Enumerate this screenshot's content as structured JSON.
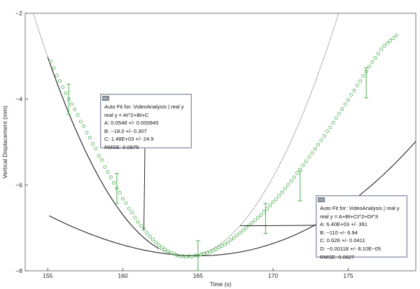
{
  "chart_data": {
    "type": "scatter",
    "xlabel": "Time (s)",
    "ylabel": "Vertical Displacement (mm)",
    "xlim": [
      153.5,
      179.5
    ],
    "ylim": [
      -8,
      -2
    ],
    "xticks": [
      155,
      160,
      165,
      170,
      175
    ],
    "yticks": [
      -2,
      -4,
      -6,
      -8
    ],
    "grid": false,
    "colors": {
      "points": "#4caf50",
      "errorbars": "#4caf50",
      "fit": "#222222",
      "extrapolation": "#444444"
    },
    "series": [
      {
        "kind": "data",
        "x": [
          155.2,
          155.4,
          155.6,
          155.8,
          156.0,
          156.2,
          156.4,
          156.6,
          156.8,
          157.0,
          157.2,
          157.4,
          157.6,
          157.8,
          158.0,
          158.2,
          158.4,
          158.6,
          158.8,
          159.0,
          159.2,
          159.4,
          159.6,
          159.8,
          160.0,
          160.2,
          160.4,
          160.6,
          160.8,
          161.0,
          161.2,
          161.4,
          161.6,
          161.8,
          162.0,
          162.2,
          162.4,
          162.6,
          162.8,
          163.0,
          163.2,
          163.4,
          163.6,
          163.8,
          164.0,
          164.2,
          164.4,
          164.6,
          164.8,
          165.0,
          165.2,
          165.4,
          165.6,
          165.8,
          166.0,
          166.2,
          166.4,
          166.6,
          166.8,
          167.0,
          167.2,
          167.4,
          167.6,
          167.8,
          168.0,
          168.2,
          168.4,
          168.6,
          168.8,
          169.0,
          169.2,
          169.4,
          169.6,
          169.8,
          170.0,
          170.2,
          170.4,
          170.6,
          170.8,
          171.0,
          171.2,
          171.4,
          171.6,
          171.8,
          172.0,
          172.2,
          172.4,
          172.6,
          172.8,
          173.0,
          173.2,
          173.4,
          173.6,
          173.8,
          174.0,
          174.2,
          174.4,
          174.6,
          174.8,
          175.0,
          175.2,
          175.4,
          175.6,
          175.8,
          176.0,
          176.2,
          176.4,
          176.6,
          176.8,
          177.0,
          177.2,
          177.4,
          177.6,
          177.8,
          178.0,
          178.2
        ],
        "y": [
          -3.12,
          -3.28,
          -3.45,
          -3.58,
          -3.72,
          -3.86,
          -4.0,
          -4.12,
          -4.24,
          -4.37,
          -4.52,
          -4.63,
          -4.78,
          -4.9,
          -5.04,
          -5.15,
          -5.32,
          -5.42,
          -5.58,
          -5.7,
          -5.82,
          -5.95,
          -6.08,
          -6.18,
          -6.32,
          -6.42,
          -6.55,
          -6.64,
          -6.76,
          -6.86,
          -6.95,
          -7.03,
          -7.12,
          -7.2,
          -7.27,
          -7.34,
          -7.4,
          -7.46,
          -7.5,
          -7.55,
          -7.58,
          -7.6,
          -7.64,
          -7.66,
          -7.66,
          -7.68,
          -7.66,
          -7.67,
          -7.64,
          -7.65,
          -7.62,
          -7.6,
          -7.58,
          -7.56,
          -7.53,
          -7.5,
          -7.46,
          -7.42,
          -7.38,
          -7.34,
          -7.28,
          -7.23,
          -7.17,
          -7.12,
          -7.06,
          -7.0,
          -6.94,
          -6.88,
          -6.82,
          -6.76,
          -6.7,
          -6.62,
          -6.56,
          -6.48,
          -6.4,
          -6.33,
          -6.25,
          -6.17,
          -6.08,
          -6.0,
          -5.91,
          -5.82,
          -5.72,
          -5.64,
          -5.54,
          -5.45,
          -5.35,
          -5.26,
          -5.16,
          -5.06,
          -4.96,
          -4.86,
          -4.75,
          -4.66,
          -4.55,
          -4.44,
          -4.34,
          -4.23,
          -4.12,
          -4.02,
          -3.9,
          -3.8,
          -3.68,
          -3.58,
          -3.46,
          -3.36,
          -3.24,
          -3.14,
          -3.04,
          -2.94,
          -2.84,
          -2.76,
          -2.7,
          -2.64,
          -2.58,
          -2.52
        ],
        "errorbars": [
          {
            "x": 156.4,
            "y": -4.0,
            "err": 0.35
          },
          {
            "x": 159.6,
            "y": -6.08,
            "err": 0.35
          },
          {
            "x": 165.0,
            "y": -7.65,
            "err": 0.35
          },
          {
            "x": 169.5,
            "y": -6.78,
            "err": 0.35
          },
          {
            "x": 171.8,
            "y": -6.02,
            "err": 0.35
          },
          {
            "x": 176.2,
            "y": -3.62,
            "err": 0.35
          }
        ]
      },
      {
        "kind": "cubic-fit",
        "coefficients": {
          "A": 6400,
          "B": -110,
          "C": 0.626,
          "D": -0.00118
        },
        "xrange": [
          155.1,
          179.5
        ]
      },
      {
        "kind": "quadratic-fit",
        "coefficients": {
          "A": 0.0548,
          "B": -18.0,
          "C": 1480
        },
        "xrange": [
          155.0,
          162.4
        ]
      },
      {
        "kind": "quadratic-extrapolation",
        "coefficients": {
          "A": 0.0548,
          "B": -18.0,
          "C": 1480
        },
        "xrange": [
          153.5,
          179.5
        ]
      }
    ],
    "annotations": [
      {
        "title": "Auto Fit for: VideoAnalysis | real y",
        "equation": "real y = At^2+Bt+C",
        "params": [
          "A: 0.0548 +/- 0.000945",
          "B: −18.0 +/- 0.307",
          "C: 1.48E+03 +/- 24.9"
        ],
        "rmse": "RMSE: 0.0975",
        "pointer": {
          "x": 161.4,
          "y": -7.05
        }
      },
      {
        "title": "Auto Fit for: VideoAnalysis | real y",
        "equation": "real y = A+Bt+Ct^2+Dt^3",
        "params": [
          "A: 6.40E+03 +/- 391",
          "B: −110 +/- 6.94",
          "C: 0.626 +/- 0.0411",
          "D: −0.00118 +/- 8.10E−05"
        ],
        "rmse": "RMSE: 0.0827",
        "pointer": {
          "x": 167.8,
          "y": -6.95
        }
      }
    ]
  }
}
